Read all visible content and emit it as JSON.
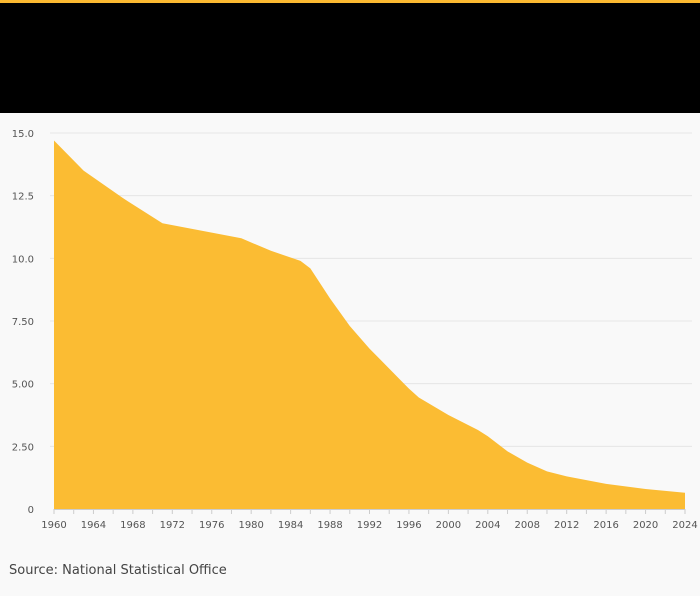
{
  "colors": {
    "accent": "#fbb931",
    "area_fill": "#fbbc33",
    "header_bg": "#000000",
    "grid": "#e6e6e6"
  },
  "source": "Source: National Statistical Office",
  "chart_data": {
    "type": "area",
    "grid": true,
    "legend": "none",
    "xlim": [
      1960,
      2024
    ],
    "ylim": [
      0,
      15
    ],
    "y_ticks": [
      0,
      2.5,
      5,
      7.5,
      10,
      12.5,
      15
    ],
    "y_tick_labels": [
      "0",
      "2.50",
      "5.00",
      "7.50",
      "10.0",
      "12.5",
      "15.0"
    ],
    "x_ticks": [
      1960,
      1964,
      1968,
      1972,
      1976,
      1980,
      1984,
      1988,
      1992,
      1996,
      2000,
      2004,
      2008,
      2012,
      2016,
      2020,
      2024
    ],
    "x_tick_labels": [
      "1960",
      "1964",
      "1968",
      "1972",
      "1976",
      "1980",
      "1984",
      "1988",
      "1992",
      "1996",
      "2000",
      "2004",
      "2008",
      "2012",
      "2016",
      "2020",
      "2024"
    ],
    "series": [
      {
        "values": [
          [
            1960,
            14.7
          ],
          [
            1963,
            13.5
          ],
          [
            1967,
            12.4
          ],
          [
            1971,
            11.4
          ],
          [
            1975,
            11.1
          ],
          [
            1979,
            10.8
          ],
          [
            1982,
            10.3
          ],
          [
            1985,
            9.9
          ],
          [
            1986,
            9.6
          ],
          [
            1988,
            8.4
          ],
          [
            1990,
            7.3
          ],
          [
            1992,
            6.4
          ],
          [
            1994,
            5.6
          ],
          [
            1996,
            4.8
          ],
          [
            1997,
            4.45
          ],
          [
            2000,
            3.75
          ],
          [
            2003,
            3.15
          ],
          [
            2004,
            2.9
          ],
          [
            2006,
            2.3
          ],
          [
            2008,
            1.85
          ],
          [
            2010,
            1.5
          ],
          [
            2012,
            1.3
          ],
          [
            2016,
            1.0
          ],
          [
            2020,
            0.8
          ],
          [
            2024,
            0.65
          ]
        ]
      }
    ]
  }
}
